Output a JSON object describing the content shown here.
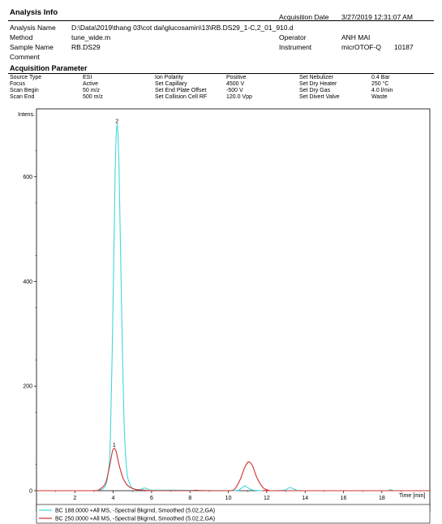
{
  "analysis_info": {
    "title": "Analysis Info",
    "analysis_name_label": "Analysis Name",
    "analysis_name": "D:\\Data\\2019\\thang 03\\cot dai\\glucosamin\\13\\RB.DS29_1-C,2_01_910.d",
    "method_label": "Method",
    "method": "tune_wide.m",
    "sample_name_label": "Sample Name",
    "sample_name": "RB.DS29",
    "comment_label": "Comment",
    "acq_date_label": "Acquisition Date",
    "acq_date": "3/27/2019 12:31:07 AM",
    "operator_label": "Operator",
    "operator": "ANH MAI",
    "instrument_label": "Instrument",
    "instrument": "micrOTOF-Q",
    "instrument_id": "10187"
  },
  "acquisition": {
    "title": "Acquisition Parameter",
    "params": [
      {
        "label": "Source Type",
        "value": "ESI"
      },
      {
        "label": "Focus",
        "value": "Active"
      },
      {
        "label": "Scan Begin",
        "value": "50 m/z"
      },
      {
        "label": "Scan End",
        "value": "500 m/z"
      },
      {
        "label": "Ion Polarity",
        "value": "Positive"
      },
      {
        "label": "Set Capillary",
        "value": "4500 V"
      },
      {
        "label": "Set End Plate Offset",
        "value": "-500 V"
      },
      {
        "label": "Set Collision Cell RF",
        "value": "120.0 Vpp"
      },
      {
        "label": "Set Nebulizer",
        "value": "0.4 Bar"
      },
      {
        "label": "Set Dry Heater",
        "value": "250 °C"
      },
      {
        "label": "Set Dry Gas",
        "value": "4.0 l/min"
      },
      {
        "label": "Set Divert Valve",
        "value": "Waste"
      }
    ]
  },
  "chart_data": {
    "type": "line",
    "ylabel": "Intens.",
    "xlabel": "Time [min]",
    "xlim": [
      0,
      20.5
    ],
    "ylim": [
      0,
      730
    ],
    "x_ticks": [
      2,
      4,
      6,
      8,
      10,
      12,
      14,
      16,
      18
    ],
    "y_ticks": [
      0,
      200,
      400,
      600
    ],
    "peak_labels": [
      {
        "text": "2",
        "x": 4.2,
        "y": 700
      },
      {
        "text": "1",
        "x": 4.05,
        "y": 81
      }
    ],
    "series": [
      {
        "name": "BC 188.0000 +All MS, -Spectral Bkgrnd, Smoothed (5.02,2,GA)",
        "color": "#40d8dc",
        "points": [
          [
            0,
            0
          ],
          [
            2.8,
            0
          ],
          [
            3.2,
            1
          ],
          [
            3.5,
            5
          ],
          [
            3.7,
            25
          ],
          [
            3.85,
            100
          ],
          [
            4.0,
            380
          ],
          [
            4.1,
            610
          ],
          [
            4.2,
            700
          ],
          [
            4.3,
            620
          ],
          [
            4.4,
            420
          ],
          [
            4.55,
            150
          ],
          [
            4.7,
            40
          ],
          [
            4.9,
            10
          ],
          [
            5.1,
            3
          ],
          [
            5.4,
            2
          ],
          [
            5.6,
            5
          ],
          [
            5.75,
            4
          ],
          [
            6.0,
            1
          ],
          [
            7.0,
            1
          ],
          [
            10.2,
            0
          ],
          [
            10.6,
            3
          ],
          [
            10.85,
            9
          ],
          [
            11.0,
            6
          ],
          [
            11.3,
            1
          ],
          [
            12.0,
            0
          ],
          [
            12.9,
            1
          ],
          [
            13.2,
            6
          ],
          [
            13.5,
            2
          ],
          [
            14.0,
            0
          ],
          [
            18.2,
            0
          ],
          [
            18.4,
            2
          ],
          [
            18.6,
            0
          ],
          [
            20.5,
            0
          ]
        ]
      },
      {
        "name": "BC 250.0000 +All MS, -Spectral Bkgrnd, Smoothed (5.02,2,GA)",
        "color": "#d03030",
        "points": [
          [
            0,
            0
          ],
          [
            2.9,
            0
          ],
          [
            3.3,
            3
          ],
          [
            3.6,
            15
          ],
          [
            3.8,
            45
          ],
          [
            3.95,
            74
          ],
          [
            4.05,
            81
          ],
          [
            4.15,
            75
          ],
          [
            4.3,
            50
          ],
          [
            4.5,
            25
          ],
          [
            4.7,
            12
          ],
          [
            4.9,
            6
          ],
          [
            5.2,
            2
          ],
          [
            5.6,
            1
          ],
          [
            6.0,
            0
          ],
          [
            8.0,
            0
          ],
          [
            8.3,
            1
          ],
          [
            8.6,
            0
          ],
          [
            10.0,
            0
          ],
          [
            10.3,
            2
          ],
          [
            10.6,
            20
          ],
          [
            10.85,
            44
          ],
          [
            11.05,
            55
          ],
          [
            11.25,
            48
          ],
          [
            11.5,
            24
          ],
          [
            11.8,
            6
          ],
          [
            12.1,
            1
          ],
          [
            12.5,
            0
          ],
          [
            20.5,
            0
          ]
        ]
      }
    ]
  }
}
